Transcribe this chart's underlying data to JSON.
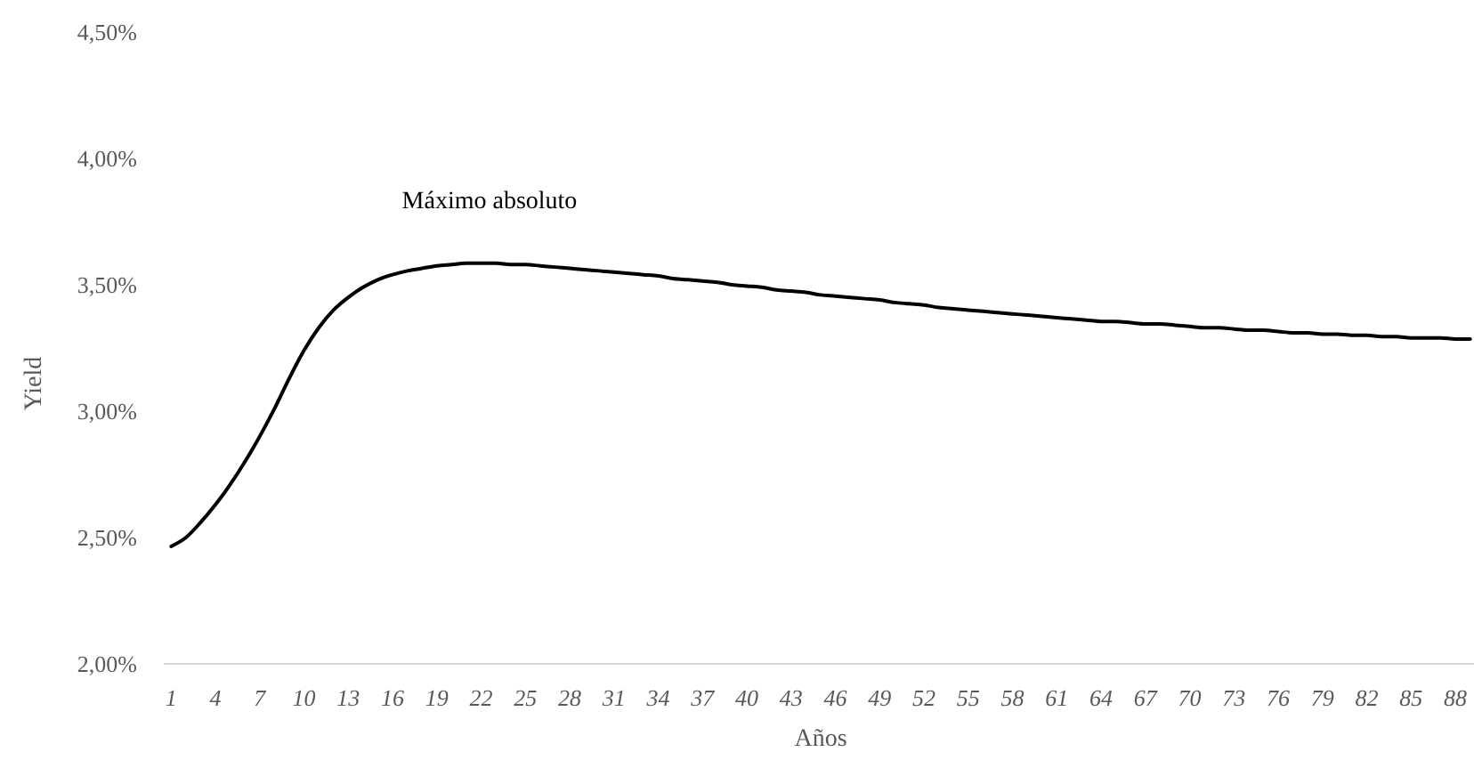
{
  "chart_data": {
    "type": "line",
    "xlabel": "Años",
    "ylabel": "Yield",
    "categories": [
      "1",
      null,
      null,
      "4",
      null,
      null,
      "7",
      null,
      null,
      "10",
      null,
      null,
      "13",
      null,
      null,
      "16",
      null,
      null,
      "19",
      null,
      null,
      "22",
      null,
      null,
      "25",
      null,
      null,
      "28",
      null,
      null,
      "31",
      null,
      null,
      "34",
      null,
      null,
      "37",
      null,
      null,
      "40",
      null,
      null,
      "43",
      null,
      null,
      "46",
      null,
      null,
      "49",
      null,
      null,
      "52",
      null,
      null,
      "55",
      null,
      null,
      "58",
      null,
      null,
      "61",
      null,
      null,
      "64",
      null,
      null,
      "67",
      null,
      null,
      "70",
      null,
      null,
      "73",
      null,
      null,
      "76",
      null,
      null,
      "79",
      null,
      null,
      "82",
      null,
      null,
      "85",
      null,
      null,
      "88",
      null
    ],
    "series": [
      {
        "color": "#000000",
        "values": [
          2.465,
          2.5,
          2.56,
          2.63,
          2.71,
          2.8,
          2.9,
          3.01,
          3.13,
          3.24,
          3.33,
          3.4,
          3.45,
          3.49,
          3.52,
          3.54,
          3.555,
          3.565,
          3.575,
          3.58,
          3.585,
          3.585,
          3.585,
          3.58,
          3.58,
          3.575,
          3.57,
          3.565,
          3.56,
          3.555,
          3.55,
          3.545,
          3.54,
          3.535,
          3.525,
          3.52,
          3.515,
          3.51,
          3.5,
          3.495,
          3.49,
          3.48,
          3.475,
          3.47,
          3.46,
          3.455,
          3.45,
          3.445,
          3.44,
          3.43,
          3.425,
          3.42,
          3.41,
          3.405,
          3.4,
          3.395,
          3.39,
          3.385,
          3.38,
          3.375,
          3.37,
          3.365,
          3.36,
          3.355,
          3.355,
          3.35,
          3.345,
          3.345,
          3.34,
          3.335,
          3.33,
          3.33,
          3.325,
          3.32,
          3.32,
          3.315,
          3.31,
          3.31,
          3.305,
          3.305,
          3.3,
          3.3,
          3.295,
          3.295,
          3.29,
          3.29,
          3.29,
          3.285,
          3.285
        ]
      }
    ],
    "ylim": [
      2,
      4.5
    ],
    "yticks": [
      {
        "value": 2,
        "label": "2,00%"
      },
      {
        "value": 2.5,
        "label": "2,50%"
      },
      {
        "value": 3,
        "label": "3,00%"
      },
      {
        "value": 3.5,
        "label": "3,50%"
      },
      {
        "value": 4,
        "label": "4,00%"
      },
      {
        "value": 4.5,
        "label": "4,50%"
      }
    ],
    "grid": false,
    "marker": "none",
    "line_style": "solid",
    "annotations": [
      "Máximo absoluto"
    ]
  }
}
